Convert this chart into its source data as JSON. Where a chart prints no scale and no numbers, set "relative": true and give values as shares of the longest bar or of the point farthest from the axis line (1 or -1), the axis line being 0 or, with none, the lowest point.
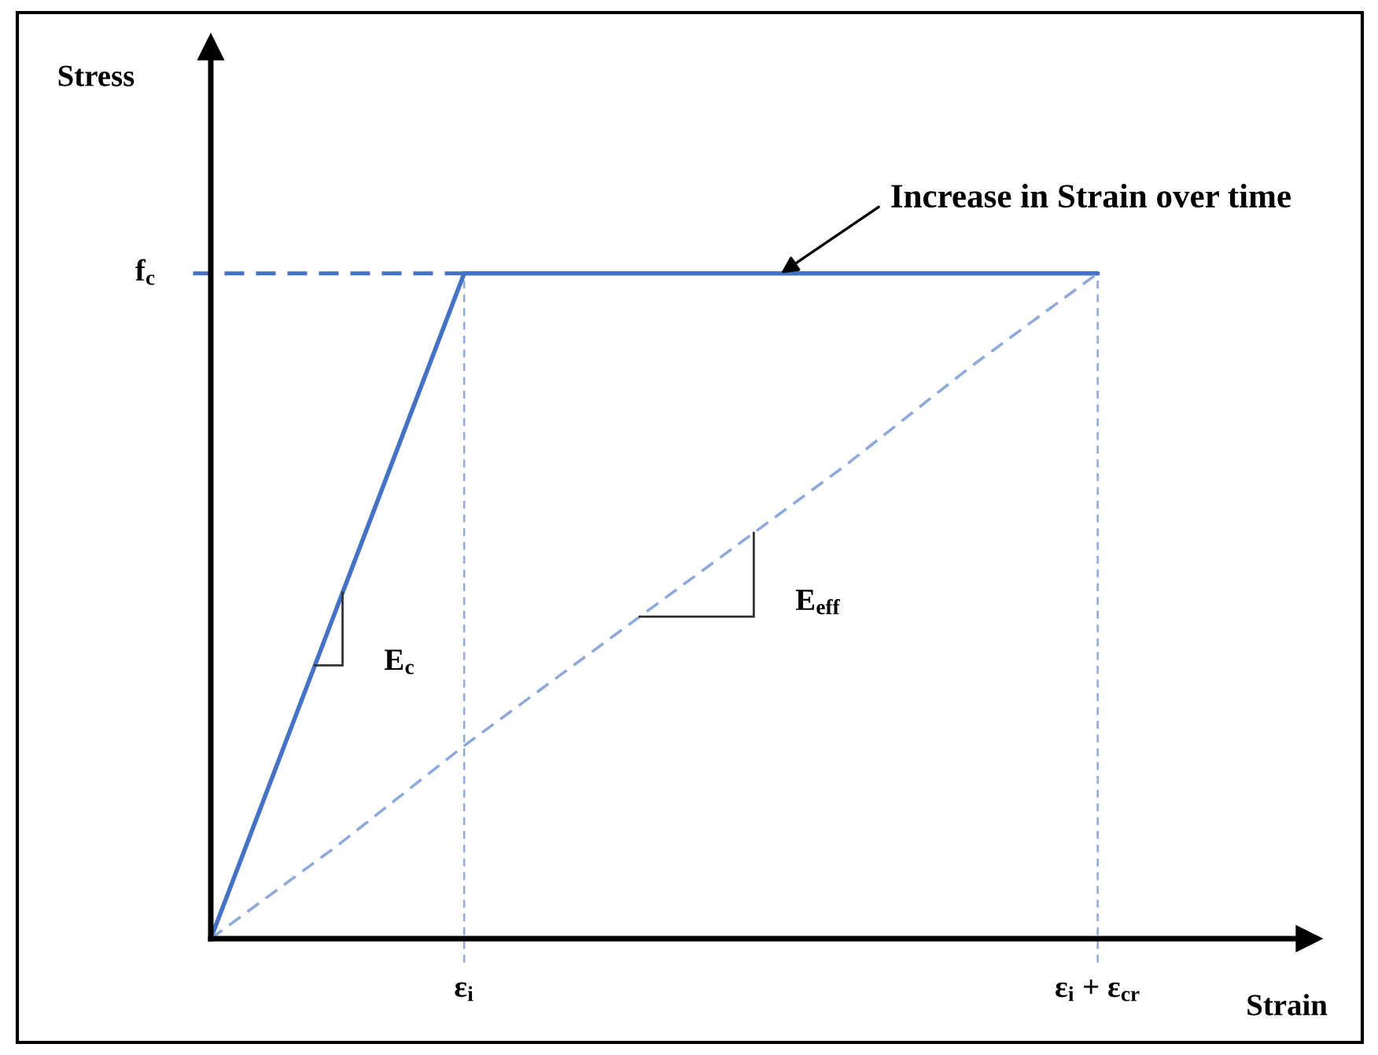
{
  "chart_data": {
    "type": "line",
    "relative": true,
    "xlabel": "Strain",
    "categories": [
      null,
      null,
      "ε$_{i}$",
      null,
      null,
      null,
      null,
      "ε$_{i}$ + ε$_{cr}$"
    ],
    "series": [
      {
        "name": "E$_{c}$",
        "color": "#4472c4",
        "values": [
          0,
          0.5,
          1,
          1,
          1,
          1,
          1,
          1
        ],
        "line_style": "solid"
      },
      {
        "name": "E$_{eff}$",
        "color": "#8eaadb",
        "values": [
          0,
          0.14,
          0.29,
          0.43,
          0.57,
          0.71,
          0.86,
          1
        ],
        "line_style": "dashed"
      }
    ],
    "ref_lines": [
      {
        "axis": "y",
        "value": 1,
        "label": "f$_{c}$",
        "color": "#4472c4",
        "line_style": "dashed"
      },
      {
        "axis": "x",
        "value": "ε$_{i}$",
        "color": "#8eaadb",
        "line_style": "dashed"
      },
      {
        "axis": "x",
        "value": "ε$_{i}$ + ε$_{cr}$",
        "color": "#8eaadb",
        "line_style": "dashed"
      }
    ],
    "annotations": [
      "Stress",
      {
        "text": "Increase in Strain over time",
        "y": 1
      }
    ]
  }
}
